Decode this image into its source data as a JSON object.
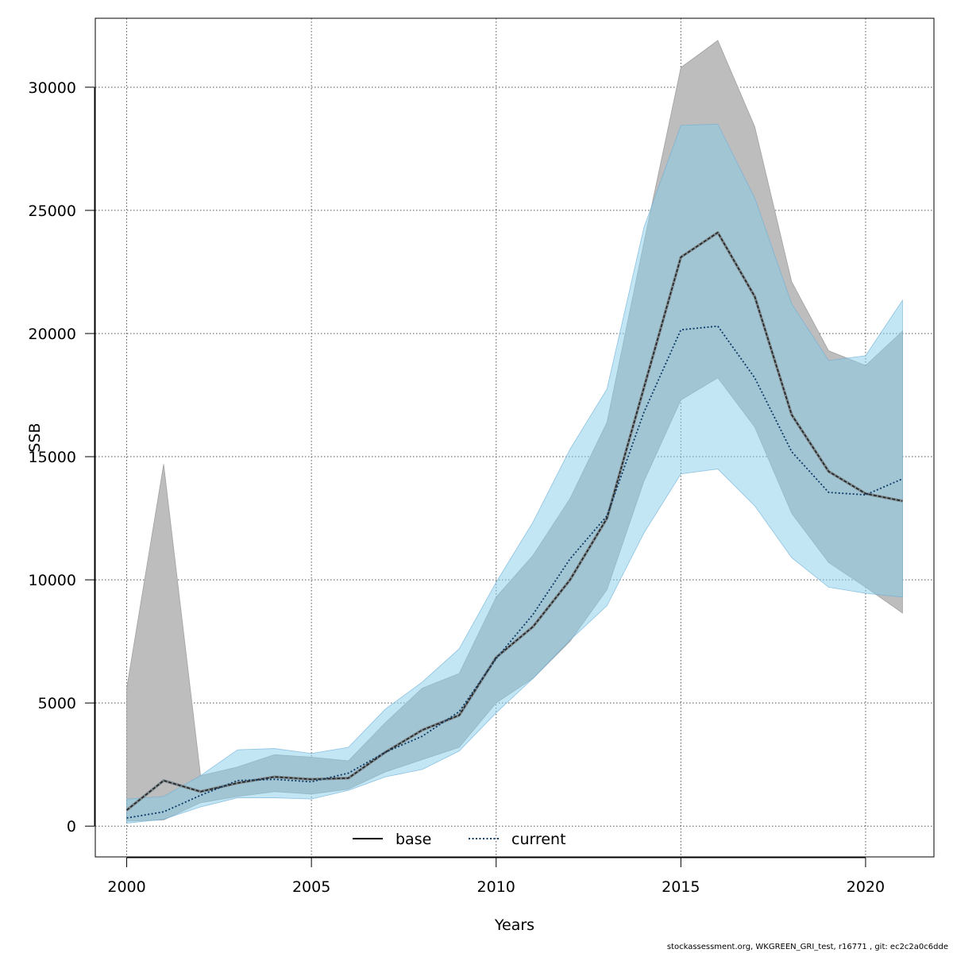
{
  "chart_data": {
    "type": "area",
    "title": "",
    "xlabel": "Years",
    "ylabel": "SSB",
    "xlim": [
      1999.15,
      2021.85
    ],
    "ylim": [
      -1250,
      32800
    ],
    "x_ticks": [
      2000,
      2005,
      2010,
      2015,
      2020
    ],
    "y_ticks": [
      0,
      5000,
      10000,
      15000,
      20000,
      25000,
      30000
    ],
    "grid": true,
    "legend_position": "bottom-center",
    "x": [
      2000,
      2001,
      2002,
      2003,
      2004,
      2005,
      2006,
      2007,
      2008,
      2009,
      2010,
      2011,
      2012,
      2013,
      2014,
      2015,
      2016,
      2017,
      2018,
      2019,
      2020,
      2021
    ],
    "series": [
      {
        "name": "base",
        "line_style": "solid",
        "line_color": "#000000",
        "band_color": "#bdbdbd",
        "values": [
          650,
          1850,
          1400,
          1750,
          2000,
          1900,
          1950,
          3000,
          3900,
          4500,
          6850,
          8100,
          10000,
          12500,
          17800,
          23100,
          24100,
          21500,
          16700,
          14400,
          13500,
          13200
        ],
        "lower": [
          200,
          250,
          950,
          1200,
          1400,
          1300,
          1500,
          2200,
          2700,
          3200,
          5000,
          6000,
          7500,
          9600,
          14000,
          17300,
          18200,
          16200,
          12700,
          10700,
          9700,
          8650
        ],
        "upper": [
          5600,
          14700,
          2050,
          2400,
          2900,
          2800,
          2650,
          4200,
          5600,
          6200,
          9300,
          11000,
          13300,
          16400,
          23700,
          30800,
          31900,
          28400,
          22100,
          19300,
          18700,
          20100
        ]
      },
      {
        "name": "current",
        "line_style": "dotted",
        "line_color": "#0b3a66",
        "band_color": "#87ceeb",
        "values": [
          330,
          580,
          1250,
          1850,
          1900,
          1800,
          2150,
          3000,
          3650,
          4650,
          6800,
          8600,
          10850,
          12600,
          16800,
          20150,
          20300,
          18200,
          15200,
          13550,
          13450,
          14100
        ],
        "lower": [
          120,
          280,
          780,
          1150,
          1150,
          1100,
          1450,
          2000,
          2300,
          3050,
          4600,
          6000,
          7550,
          8950,
          11900,
          14300,
          14500,
          13000,
          10900,
          9700,
          9450,
          9300
        ],
        "upper": [
          1100,
          1200,
          2050,
          3100,
          3150,
          2950,
          3200,
          4750,
          5850,
          7200,
          9900,
          12350,
          15300,
          17750,
          24300,
          28450,
          28500,
          25500,
          21200,
          18900,
          19100,
          21350
        ]
      }
    ]
  },
  "footer_text": "stockassessment.org, WKGREEN_GRI_test, r16771 , git: ec2c2a0c6dde"
}
